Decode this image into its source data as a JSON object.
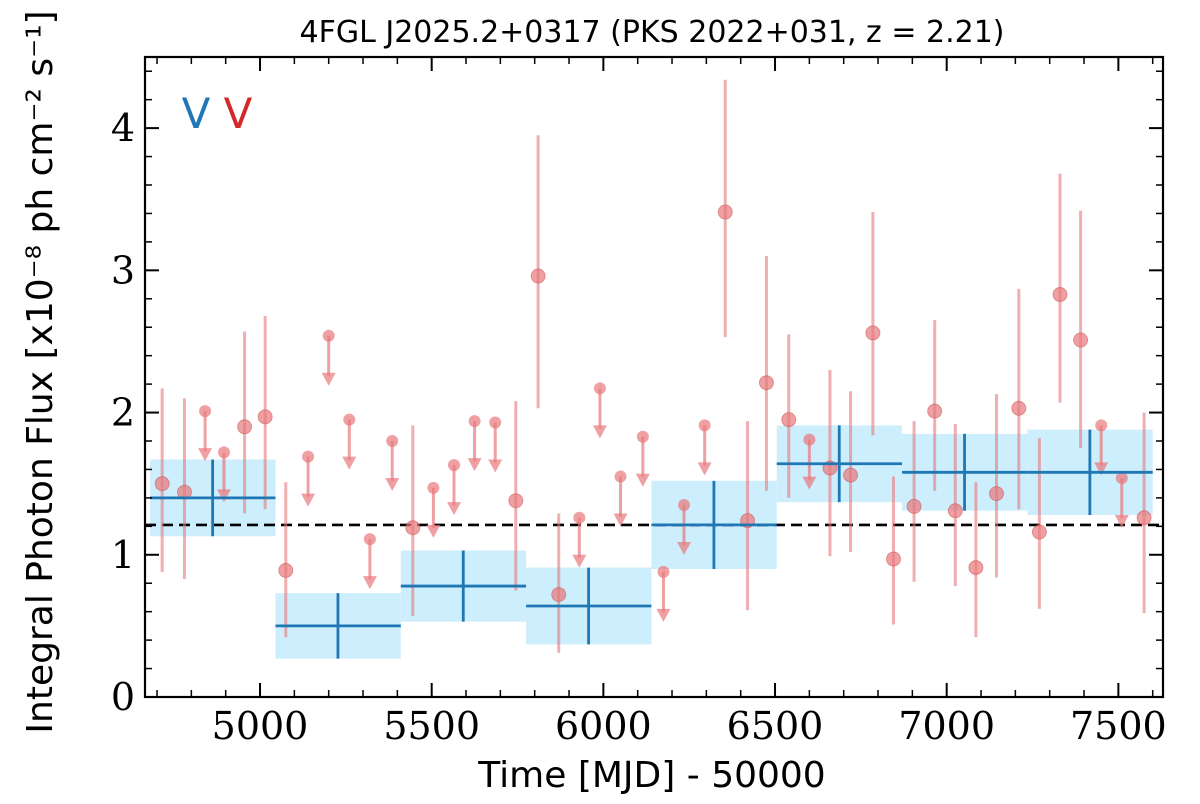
{
  "chart_data": {
    "type": "scatter",
    "title": "4FGL J2025.2+0317 (PKS 2022+031, z = 2.21)",
    "xlabel": "Time [MJD] - 50000",
    "ylabel": "Integral Photon Flux [x10⁻⁸ ph cm⁻² s⁻¹]",
    "xlim": [
      4665,
      7630
    ],
    "ylim": [
      0,
      4.5
    ],
    "x_ticks": [
      5000,
      5500,
      6000,
      6500,
      7000,
      7500
    ],
    "y_ticks": [
      0,
      1,
      2,
      3,
      4
    ],
    "mean_flux": 1.21,
    "annotations": [
      {
        "text": "V",
        "color": "#1f77b4"
      },
      {
        "text": "V",
        "color": "#d62728"
      }
    ],
    "series": [
      {
        "name": "",
        "color": "#1f77b4",
        "band_color": "#cdeefc",
        "bins": [
          {
            "x_start": 4680,
            "x_end": 5045,
            "x": 4862,
            "y": 1.4,
            "y_err": 0.27
          },
          {
            "x_start": 5045,
            "x_end": 5410,
            "x": 5227,
            "y": 0.5,
            "y_err": 0.23
          },
          {
            "x_start": 5410,
            "x_end": 5775,
            "x": 5592,
            "y": 0.78,
            "y_err": 0.25
          },
          {
            "x_start": 5775,
            "x_end": 6140,
            "x": 5957,
            "y": 0.64,
            "y_err": 0.27
          },
          {
            "x_start": 6140,
            "x_end": 6505,
            "x": 6322,
            "y": 1.21,
            "y_err": 0.31
          },
          {
            "x_start": 6505,
            "x_end": 6870,
            "x": 6687,
            "y": 1.64,
            "y_err": 0.27
          },
          {
            "x_start": 6870,
            "x_end": 7235,
            "x": 7052,
            "y": 1.58,
            "y_err": 0.27
          },
          {
            "x_start": 7235,
            "x_end": 7600,
            "x": 7417,
            "y": 1.58,
            "y_err": 0.3
          }
        ]
      },
      {
        "name": "",
        "color": "#e8787c",
        "points": [
          {
            "x": 4715,
            "y": 1.5,
            "lo": 0.88,
            "hi": 2.17
          },
          {
            "x": 4780,
            "y": 1.44,
            "lo": 0.83,
            "hi": 2.1
          },
          {
            "x": 4840,
            "y": 2.01,
            "upper_limit": true
          },
          {
            "x": 4895,
            "y": 1.72,
            "upper_limit": true
          },
          {
            "x": 4955,
            "y": 1.9,
            "lo": 1.29,
            "hi": 2.57
          },
          {
            "x": 5015,
            "y": 1.97,
            "lo": 1.32,
            "hi": 2.68
          },
          {
            "x": 5075,
            "y": 0.89,
            "lo": 0.42,
            "hi": 1.51
          },
          {
            "x": 5140,
            "y": 1.69,
            "upper_limit": true
          },
          {
            "x": 5200,
            "y": 2.54,
            "upper_limit": true
          },
          {
            "x": 5260,
            "y": 1.95,
            "upper_limit": true
          },
          {
            "x": 5320,
            "y": 1.11,
            "upper_limit": true
          },
          {
            "x": 5385,
            "y": 1.8,
            "upper_limit": true
          },
          {
            "x": 5445,
            "y": 1.19,
            "lo": 0.57,
            "hi": 1.91
          },
          {
            "x": 5505,
            "y": 1.47,
            "upper_limit": true
          },
          {
            "x": 5565,
            "y": 1.63,
            "upper_limit": true
          },
          {
            "x": 5625,
            "y": 1.94,
            "upper_limit": true
          },
          {
            "x": 5685,
            "y": 1.93,
            "upper_limit": true
          },
          {
            "x": 5745,
            "y": 1.38,
            "lo": 0.75,
            "hi": 2.08
          },
          {
            "x": 5810,
            "y": 2.96,
            "lo": 2.03,
            "hi": 3.95
          },
          {
            "x": 5870,
            "y": 0.72,
            "lo": 0.31,
            "hi": 1.29
          },
          {
            "x": 5930,
            "y": 1.26,
            "upper_limit": true
          },
          {
            "x": 5990,
            "y": 2.17,
            "upper_limit": true
          },
          {
            "x": 6050,
            "y": 1.55,
            "upper_limit": true
          },
          {
            "x": 6115,
            "y": 1.83,
            "upper_limit": true
          },
          {
            "x": 6175,
            "y": 0.88,
            "upper_limit": true
          },
          {
            "x": 6235,
            "y": 1.35,
            "upper_limit": true
          },
          {
            "x": 6295,
            "y": 1.91,
            "upper_limit": true
          },
          {
            "x": 6355,
            "y": 3.41,
            "lo": 2.53,
            "hi": 4.34
          },
          {
            "x": 6420,
            "y": 1.24,
            "lo": 0.61,
            "hi": 1.94
          },
          {
            "x": 6475,
            "y": 2.21,
            "lo": 1.45,
            "hi": 3.1
          },
          {
            "x": 6540,
            "y": 1.95,
            "lo": 1.4,
            "hi": 2.55
          },
          {
            "x": 6600,
            "y": 1.81,
            "upper_limit": true
          },
          {
            "x": 6660,
            "y": 1.61,
            "lo": 0.99,
            "hi": 2.3
          },
          {
            "x": 6720,
            "y": 1.56,
            "lo": 1.02,
            "hi": 2.15
          },
          {
            "x": 6785,
            "y": 2.56,
            "lo": 1.84,
            "hi": 3.41
          },
          {
            "x": 6845,
            "y": 0.97,
            "lo": 0.51,
            "hi": 1.55
          },
          {
            "x": 6905,
            "y": 1.34,
            "lo": 0.81,
            "hi": 1.94
          },
          {
            "x": 6965,
            "y": 2.01,
            "lo": 1.45,
            "hi": 2.65
          },
          {
            "x": 7025,
            "y": 1.31,
            "lo": 0.78,
            "hi": 1.92
          },
          {
            "x": 7085,
            "y": 0.91,
            "lo": 0.42,
            "hi": 1.51
          },
          {
            "x": 7145,
            "y": 1.43,
            "lo": 0.84,
            "hi": 2.13
          },
          {
            "x": 7210,
            "y": 2.03,
            "lo": 1.32,
            "hi": 2.87
          },
          {
            "x": 7270,
            "y": 1.16,
            "lo": 0.62,
            "hi": 1.82
          },
          {
            "x": 7330,
            "y": 2.83,
            "lo": 2.07,
            "hi": 3.68
          },
          {
            "x": 7390,
            "y": 2.51,
            "lo": 1.75,
            "hi": 3.42
          },
          {
            "x": 7450,
            "y": 1.91,
            "upper_limit": true
          },
          {
            "x": 7510,
            "y": 1.54,
            "upper_limit": true
          },
          {
            "x": 7575,
            "y": 1.26,
            "lo": 0.59,
            "hi": 2.0
          }
        ]
      }
    ]
  }
}
